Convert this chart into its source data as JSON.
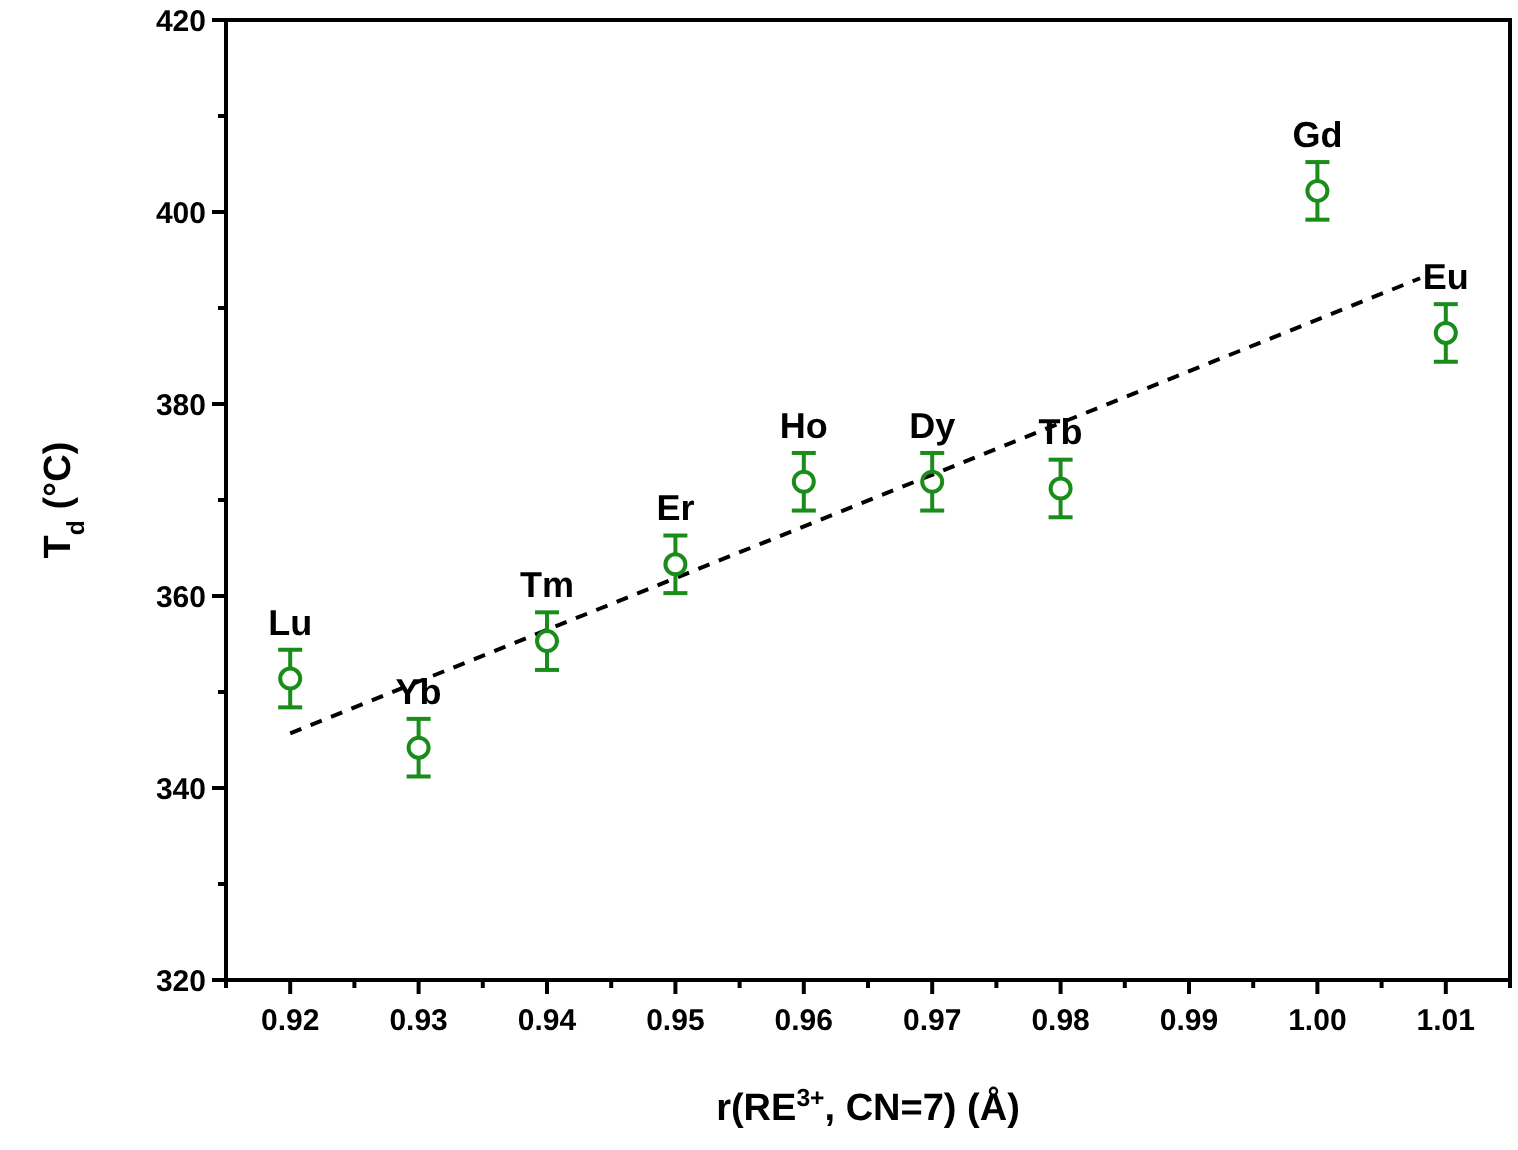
{
  "chart_data": {
    "type": "scatter",
    "xlabel": "r(RE$^{3+}$, CN=7) (Å)",
    "ylabel": "T$_{d}$ (°C)",
    "xlim": [
      0.915,
      1.015
    ],
    "ylim": [
      320,
      420
    ],
    "xticks": [
      {
        "value": 0.915,
        "label": null
      },
      0.92,
      {
        "value": 0.925,
        "label": null
      },
      0.93,
      {
        "value": 0.935,
        "label": null
      },
      0.94,
      {
        "value": 0.945,
        "label": null
      },
      0.95,
      {
        "value": 0.955,
        "label": null
      },
      0.96,
      {
        "value": 0.965,
        "label": null
      },
      0.97,
      {
        "value": 0.975,
        "label": null
      },
      0.98,
      {
        "value": 0.985,
        "label": null
      },
      0.99,
      {
        "value": 0.995,
        "label": null
      },
      {
        "value": 1.0,
        "label": "1.00"
      },
      {
        "value": 1.005,
        "label": null
      },
      1.01,
      {
        "value": 1.015,
        "label": null
      }
    ],
    "yticks": [
      320,
      {
        "value": 330,
        "label": null
      },
      340,
      {
        "value": 350,
        "label": null
      },
      360,
      {
        "value": 370,
        "label": null
      },
      380,
      {
        "value": 390,
        "label": null
      },
      400,
      {
        "value": 410,
        "label": null
      },
      420
    ],
    "grid": false,
    "series": [
      {
        "color": "#1a8c1a",
        "marker": "circle",
        "x": [
          0.92,
          0.93,
          0.94,
          0.95,
          0.96,
          0.97,
          0.98,
          1.0,
          1.01
        ],
        "values": [
          351.4,
          344.2,
          355.3,
          363.3,
          371.9,
          371.9,
          371.2,
          402.2,
          387.4
        ],
        "errors": [
          3,
          3,
          3,
          3,
          3,
          3,
          3,
          3,
          3
        ]
      },
      {
        "type": "line",
        "color": "#000000",
        "line_style": "dashed",
        "x": [
          0.92,
          1.008
        ],
        "values": [
          345.7,
          393.1
        ]
      }
    ],
    "annotations": [
      {
        "text": "Lu",
        "x": 0.92,
        "y": 351.4
      },
      {
        "text": "Yb",
        "x": 0.93,
        "y": 344.2
      },
      {
        "text": "Tm",
        "x": 0.94,
        "y": 355.3
      },
      {
        "text": "Er",
        "x": 0.95,
        "y": 363.3
      },
      {
        "text": "Ho",
        "x": 0.96,
        "y": 371.9
      },
      {
        "text": "Dy",
        "x": 0.97,
        "y": 371.9
      },
      {
        "text": "Tb",
        "x": 0.98,
        "y": 371.2
      },
      {
        "text": "Gd",
        "x": 1.0,
        "y": 402.2
      },
      {
        "text": "Eu",
        "x": 1.01,
        "y": 387.4
      }
    ]
  }
}
